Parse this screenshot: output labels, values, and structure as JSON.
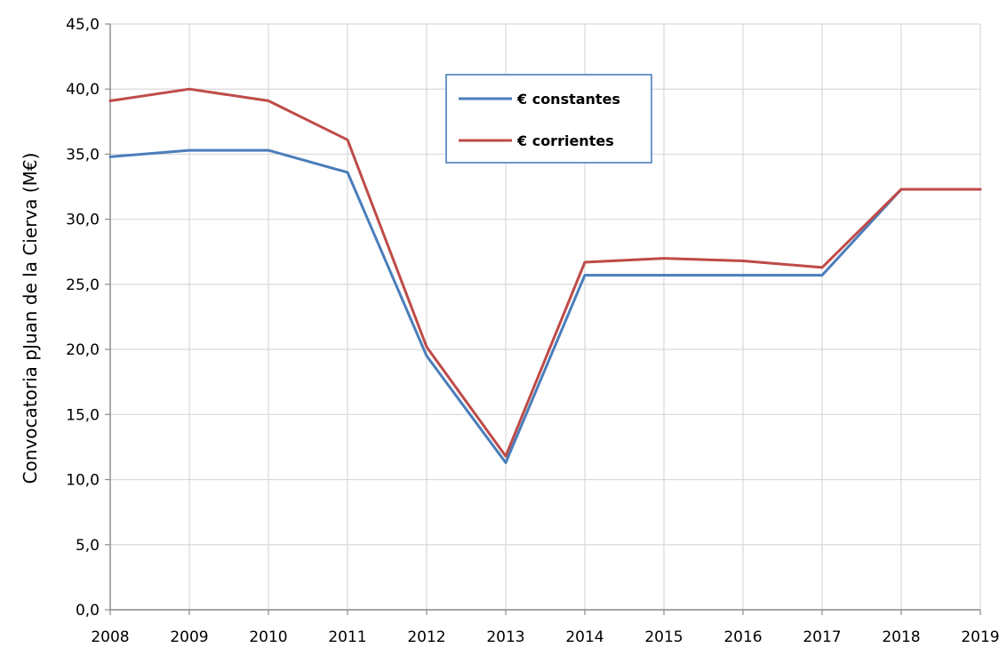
{
  "chart_data": {
    "type": "line",
    "title": "",
    "xlabel": "",
    "ylabel": "Convocatoria pJuan de la Cierva (M€)",
    "x": [
      "2008",
      "2009",
      "2010",
      "2011",
      "2012",
      "2013",
      "2014",
      "2015",
      "2016",
      "2017",
      "2018",
      "2019"
    ],
    "ylim": [
      0,
      45
    ],
    "ytick_step": 5,
    "ytick_labels": [
      "0,0",
      "5,0",
      "10,0",
      "15,0",
      "20,0",
      "25,0",
      "30,0",
      "35,0",
      "40,0",
      "45,0"
    ],
    "grid": true,
    "legend_position": "top-center",
    "series": [
      {
        "name": "€ constantes",
        "color": "#4a7ebb",
        "values": [
          34.8,
          35.3,
          35.3,
          33.6,
          19.5,
          11.3,
          25.7,
          25.7,
          25.7,
          25.7,
          32.3,
          32.3
        ]
      },
      {
        "name": "€ corrientes",
        "color": "#be4b48",
        "values": [
          39.1,
          40.0,
          39.1,
          36.1,
          20.2,
          11.8,
          26.7,
          27.0,
          26.8,
          26.3,
          32.3,
          32.3
        ]
      }
    ]
  }
}
